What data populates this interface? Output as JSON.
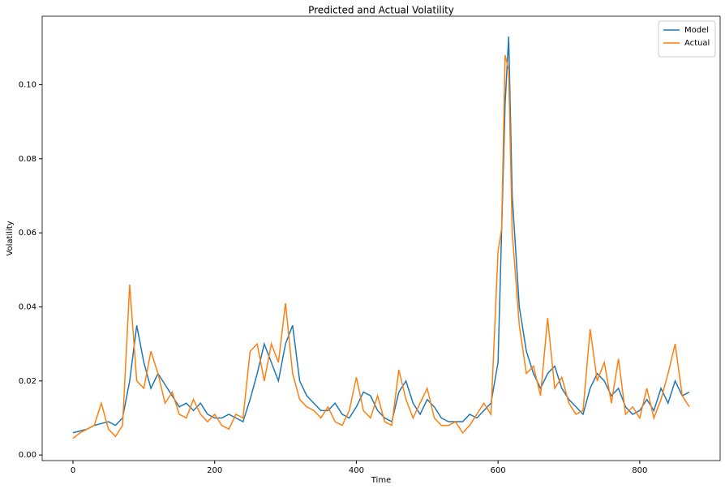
{
  "chart_data": {
    "type": "line",
    "title": "Predicted and Actual Volatility",
    "x_label": "Time",
    "y_label": "Volatility",
    "x": [
      0,
      10,
      20,
      30,
      40,
      50,
      60,
      70,
      80,
      90,
      100,
      110,
      120,
      130,
      140,
      150,
      160,
      170,
      180,
      190,
      200,
      210,
      220,
      230,
      240,
      250,
      260,
      270,
      280,
      290,
      300,
      310,
      320,
      330,
      340,
      350,
      360,
      370,
      380,
      390,
      400,
      410,
      420,
      430,
      440,
      450,
      460,
      470,
      480,
      490,
      500,
      510,
      520,
      530,
      540,
      550,
      560,
      570,
      580,
      590,
      600,
      605,
      610,
      615,
      620,
      630,
      640,
      650,
      660,
      670,
      680,
      690,
      700,
      710,
      720,
      730,
      740,
      750,
      760,
      770,
      780,
      790,
      800,
      810,
      820,
      830,
      840,
      850,
      860,
      870
    ],
    "series": [
      {
        "name": "Model",
        "color": "#1f77b4",
        "values": [
          0.006,
          0.0065,
          0.007,
          0.008,
          0.0085,
          0.009,
          0.008,
          0.01,
          0.02,
          0.035,
          0.025,
          0.018,
          0.022,
          0.019,
          0.016,
          0.013,
          0.014,
          0.012,
          0.014,
          0.011,
          0.01,
          0.01,
          0.011,
          0.01,
          0.009,
          0.015,
          0.022,
          0.03,
          0.025,
          0.02,
          0.03,
          0.035,
          0.02,
          0.016,
          0.014,
          0.012,
          0.012,
          0.014,
          0.011,
          0.01,
          0.013,
          0.017,
          0.016,
          0.012,
          0.01,
          0.009,
          0.017,
          0.02,
          0.014,
          0.011,
          0.015,
          0.013,
          0.01,
          0.009,
          0.009,
          0.009,
          0.011,
          0.01,
          0.012,
          0.014,
          0.025,
          0.06,
          0.095,
          0.113,
          0.07,
          0.04,
          0.028,
          0.022,
          0.018,
          0.022,
          0.024,
          0.018,
          0.015,
          0.013,
          0.011,
          0.018,
          0.022,
          0.02,
          0.016,
          0.018,
          0.013,
          0.011,
          0.012,
          0.015,
          0.012,
          0.018,
          0.014,
          0.02,
          0.016,
          0.017
        ]
      },
      {
        "name": "Actual",
        "color": "#ff7f0e",
        "values": [
          0.0045,
          0.006,
          0.007,
          0.008,
          0.014,
          0.007,
          0.005,
          0.008,
          0.046,
          0.02,
          0.018,
          0.028,
          0.022,
          0.014,
          0.017,
          0.011,
          0.01,
          0.015,
          0.011,
          0.009,
          0.011,
          0.008,
          0.007,
          0.011,
          0.01,
          0.028,
          0.03,
          0.02,
          0.03,
          0.025,
          0.041,
          0.022,
          0.015,
          0.013,
          0.012,
          0.01,
          0.013,
          0.009,
          0.008,
          0.012,
          0.021,
          0.012,
          0.01,
          0.016,
          0.009,
          0.008,
          0.023,
          0.015,
          0.01,
          0.014,
          0.018,
          0.01,
          0.008,
          0.008,
          0.009,
          0.006,
          0.008,
          0.011,
          0.014,
          0.011,
          0.055,
          0.061,
          0.108,
          0.104,
          0.06,
          0.035,
          0.022,
          0.024,
          0.016,
          0.037,
          0.018,
          0.021,
          0.014,
          0.011,
          0.012,
          0.034,
          0.02,
          0.025,
          0.014,
          0.026,
          0.011,
          0.013,
          0.01,
          0.018,
          0.01,
          0.015,
          0.022,
          0.03,
          0.016,
          0.013
        ]
      }
    ],
    "xlim": [
      -43.5,
      913.5
    ],
    "ylim": [
      -0.0015,
      0.1185
    ],
    "xticks": [
      0,
      200,
      400,
      600,
      800
    ],
    "yticks": [
      {
        "value": 0,
        "label": "0.00"
      },
      {
        "value": 0.02,
        "label": "0.02"
      },
      {
        "value": 0.04,
        "label": "0.04"
      },
      {
        "value": 0.06,
        "label": "0.06"
      },
      {
        "value": 0.08,
        "label": "0.08"
      },
      {
        "value": 0.1,
        "label": "0.10"
      }
    ],
    "grid": false,
    "legend": "upper right"
  }
}
